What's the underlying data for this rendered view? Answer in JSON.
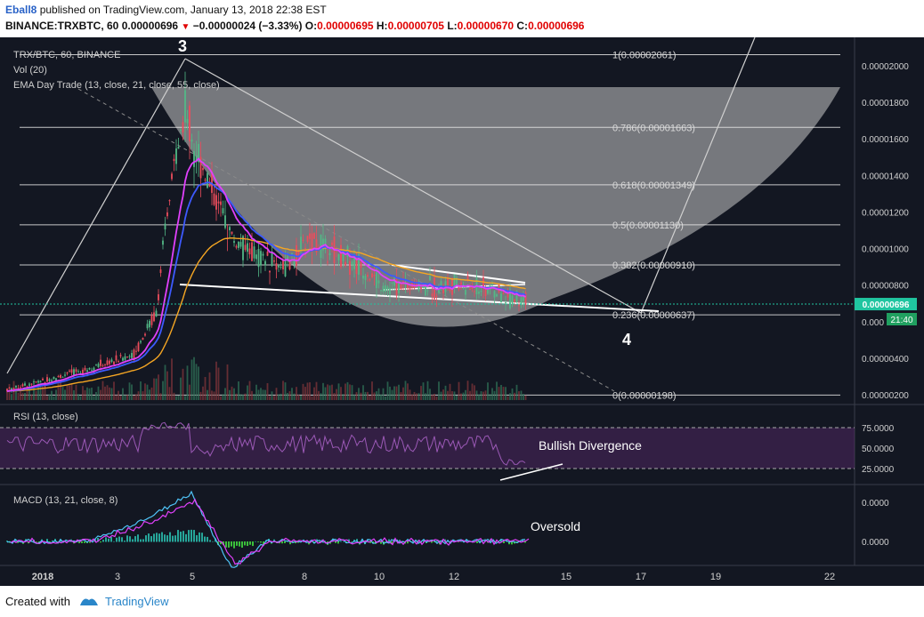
{
  "header": {
    "user": "Eball8",
    "published_text": "published on TradingView.com, January 13, 2018 22:38 EST",
    "symbol": "BINANCE:TRXBTC, 60",
    "price": "0.00000696",
    "change": "−0.00000024 (−3.33%)",
    "open_label": "O:",
    "open": "0.00000695",
    "high_label": "H:",
    "high": "0.00000705",
    "low_label": "L:",
    "low": "0.00000670",
    "close_label": "C:",
    "close": "0.00000696"
  },
  "indicators": {
    "main_title": "TRX/BTC, 60, BINANCE",
    "vol": "Vol (20)",
    "ema": "EMA Day Trade (13, close, 21, close, 55, close)",
    "rsi": "RSI (13, close)",
    "macd": "MACD (13, 21, close, 8)"
  },
  "annotations": {
    "wave3": "3",
    "wave4": "4",
    "bullish": "Bullish Divergence",
    "oversold": "Oversold"
  },
  "fib_levels": [
    {
      "label": "1(0.00002061)",
      "value": 2.061e-05
    },
    {
      "label": "0.786(0.00001663)",
      "value": 1.663e-05
    },
    {
      "label": "0.618(0.00001349)",
      "value": 1.349e-05
    },
    {
      "label": "0.5(0.00001130)",
      "value": 1.13e-05
    },
    {
      "label": "0.382(0.00000910)",
      "value": 9.1e-06
    },
    {
      "label": "0.236(0.00000637)",
      "value": 6.37e-06
    },
    {
      "label": "0(0.00000198)",
      "value": 1.98e-06
    }
  ],
  "price_axis": {
    "ticks": [
      "0.00002000",
      "0.00001800",
      "0.00001600",
      "0.00001400",
      "0.00001200",
      "0.00001000",
      "0.00000800",
      "0.000",
      "0.00000400",
      "0.00000200"
    ],
    "tick_values": [
      2e-05,
      1.8e-05,
      1.6e-05,
      1.4e-05,
      1.2e-05,
      1e-05,
      8e-06,
      6e-06,
      4e-06,
      2e-06
    ],
    "current_price": "0.00000696",
    "current_value": 6.96e-06,
    "countdown": "21:40"
  },
  "rsi_axis": {
    "ticks": [
      "75.0000",
      "50.0000",
      "25.0000"
    ],
    "tick_values": [
      75,
      50,
      25
    ]
  },
  "macd_axis": {
    "ticks": [
      "0.0000",
      "0.0000"
    ]
  },
  "time_axis": {
    "labels": [
      "2018",
      "3",
      "5",
      "8",
      "10",
      "12",
      "15",
      "17",
      "19",
      "22"
    ]
  },
  "footer": {
    "created_with": "Created with",
    "brand": "TradingView"
  },
  "colors": {
    "background": "#131722",
    "up": "#53b987",
    "down": "#eb4d5c",
    "ema13": "#e040fb",
    "ema21": "#3d5afe",
    "ema55": "#f5a623",
    "rsi": "#8e44ad",
    "macd": "#4fc3f7",
    "signal": "#e040fb",
    "price_label": "#20c5a0",
    "brand": "#2a86c9"
  }
}
